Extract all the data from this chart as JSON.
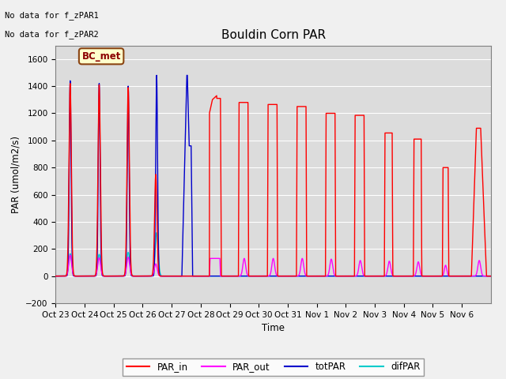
{
  "title": "Bouldin Corn PAR",
  "ylabel": "PAR (umol/m2/s)",
  "xlabel": "Time",
  "ylim": [
    -200,
    1700
  ],
  "yticks": [
    -200,
    0,
    200,
    400,
    600,
    800,
    1000,
    1200,
    1400,
    1600
  ],
  "no_data_text1": "No data for f_zPAR1",
  "no_data_text2": "No data for f_zPAR2",
  "legend_label": "BC_met",
  "x_tick_labels": [
    "Oct 23",
    "Oct 24",
    "Oct 25",
    "Oct 26",
    "Oct 27",
    "Oct 28",
    "Oct 29",
    "Oct 30",
    "Oct 31",
    "Nov 1",
    "Nov 2",
    "Nov 3",
    "Nov 4",
    "Nov 5",
    "Nov 6"
  ],
  "par_in_color": "#ff0000",
  "par_out_color": "#ff00ff",
  "tot_par_color": "#0000cc",
  "dif_par_color": "#00cccc",
  "bg_color": "#dcdcdc",
  "fig_bg": "#f0f0f0"
}
